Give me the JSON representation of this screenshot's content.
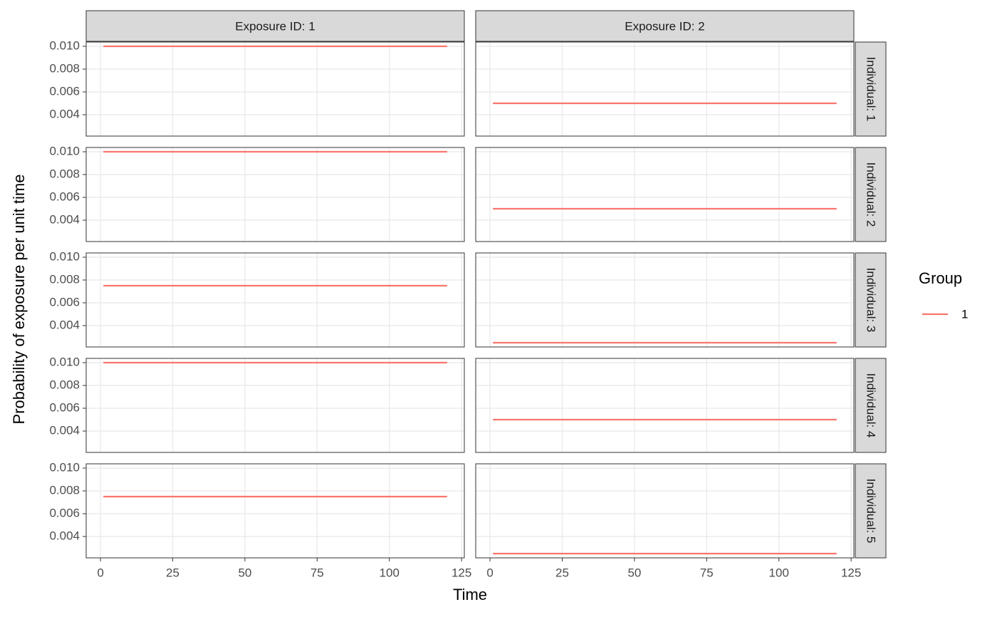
{
  "chart_data": {
    "type": "line",
    "x_label": "Time",
    "y_label": "Probability of exposure per unit time",
    "legend_title": "Group",
    "columns": [
      "Exposure ID: 1",
      "Exposure ID: 2"
    ],
    "rows": [
      "Individual: 1",
      "Individual: 2",
      "Individual: 3",
      "Individual: 4",
      "Individual: 5"
    ],
    "x": [
      1,
      120
    ],
    "series": [
      {
        "name": "1",
        "color": "#F8766D"
      }
    ],
    "panels": [
      [
        [
          0.01,
          0.01
        ],
        [
          0.005,
          0.005
        ]
      ],
      [
        [
          0.01,
          0.01
        ],
        [
          0.005,
          0.005
        ]
      ],
      [
        [
          0.0075,
          0.0075
        ],
        [
          0.0025,
          0.0025
        ]
      ],
      [
        [
          0.01,
          0.01
        ],
        [
          0.005,
          0.005
        ]
      ],
      [
        [
          0.0075,
          0.0075
        ],
        [
          0.0025,
          0.0025
        ]
      ]
    ],
    "xlim": [
      -4.95,
      125.95
    ],
    "xticks": [
      0,
      25,
      50,
      75,
      100,
      125
    ],
    "ylim": [
      0.002125,
      0.010375
    ],
    "yticks": [
      0.004,
      0.006,
      0.008,
      {
        "value": 0.01,
        "label": "0.010"
      }
    ],
    "grid": true
  }
}
